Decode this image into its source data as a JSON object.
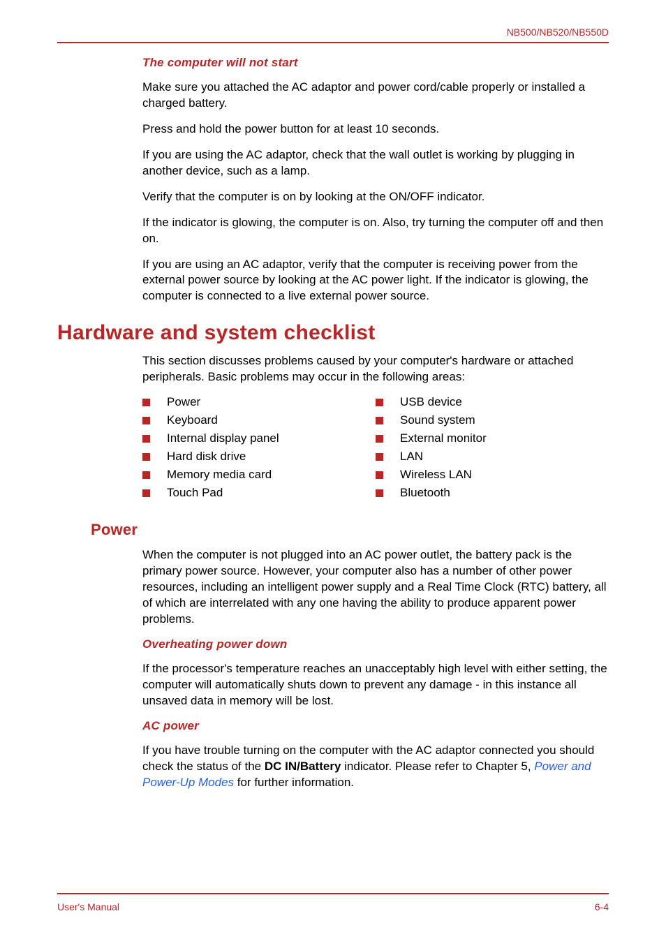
{
  "header": {
    "model": "NB500/NB520/NB550D"
  },
  "section1": {
    "heading": "The computer will not start",
    "p1": "Make sure you attached the AC adaptor and power cord/cable properly or installed a charged battery.",
    "p2": "Press and hold the power button for at least 10 seconds.",
    "p3": "If you are using the AC adaptor, check that the wall outlet is working by plugging in another device, such as a lamp.",
    "p4": "Verify that the computer is on by looking at the ON/OFF indicator.",
    "p5": "If the indicator is glowing, the computer is on. Also, try turning the computer off and then on.",
    "p6": "If you are using an AC adaptor, verify that the computer is receiving power from the external power source by looking at the AC power light. If the indicator is glowing, the computer is connected to a live external power source."
  },
  "hardware": {
    "title": "Hardware and system checklist",
    "intro": "This section discusses problems caused by your computer's hardware or attached peripherals. Basic problems may occur in the following areas:",
    "col1": {
      "i1": "Power",
      "i2": "Keyboard",
      "i3": "Internal display panel",
      "i4": "Hard disk drive",
      "i5": "Memory media card",
      "i6": "Touch Pad"
    },
    "col2": {
      "i1": "USB device",
      "i2": "Sound system",
      "i3": "External monitor",
      "i4": "LAN",
      "i5": "Wireless LAN",
      "i6": "Bluetooth"
    }
  },
  "power": {
    "title": "Power",
    "intro": "When the computer is not plugged into an AC power outlet, the battery pack is the primary power source. However, your computer also has a number of other power resources, including an intelligent power supply and a Real Time Clock (RTC) battery, all of which are interrelated with any one having the ability to produce apparent power problems.",
    "overheating": {
      "heading": "Overheating power down",
      "p1": "If the processor's temperature reaches an unacceptably high level with either setting, the computer will automatically shuts down to prevent any damage - in this instance all unsaved data in memory will be lost."
    },
    "acpower": {
      "heading": "AC power",
      "p1_a": "If you have trouble turning on the computer with the AC adaptor connected you should check the status of the ",
      "p1_bold": "DC IN/Battery",
      "p1_b": " indicator. Please refer to Chapter 5, ",
      "p1_link": "Power and Power-Up Modes",
      "p1_c": " for further information."
    }
  },
  "footer": {
    "left": "User's Manual",
    "right": "6-4"
  }
}
